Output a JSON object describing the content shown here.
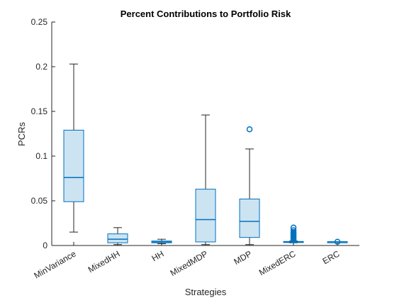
{
  "chart_data": {
    "type": "box",
    "title": "Percent Contributions to Portfolio Risk",
    "xlabel": "Strategies",
    "ylabel": "PCRs",
    "ylim": [
      0,
      0.25
    ],
    "yticks": [
      0,
      0.05,
      0.1,
      0.15,
      0.2,
      0.25
    ],
    "ytick_labels": [
      "0",
      "0.05",
      "0.1",
      "0.15",
      "0.2",
      "0.25"
    ],
    "categories": [
      "MinVariance",
      "MixedHH",
      "HH",
      "MixedMDP",
      "MDP",
      "MixedERC",
      "ERC"
    ],
    "boxes": [
      {
        "category": "MinVariance",
        "whisker_low": 0.015,
        "q1": 0.049,
        "median": 0.076,
        "q3": 0.129,
        "whisker_high": 0.203,
        "outliers": []
      },
      {
        "category": "MixedHH",
        "whisker_low": 0.001,
        "q1": 0.003,
        "median": 0.007,
        "q3": 0.013,
        "whisker_high": 0.02,
        "outliers": []
      },
      {
        "category": "HH",
        "whisker_low": 0.002,
        "q1": 0.003,
        "median": 0.004,
        "q3": 0.005,
        "whisker_high": 0.007,
        "outliers": []
      },
      {
        "category": "MixedMDP",
        "whisker_low": 0.001,
        "q1": 0.004,
        "median": 0.029,
        "q3": 0.063,
        "whisker_high": 0.146,
        "outliers": []
      },
      {
        "category": "MDP",
        "whisker_low": 0.001,
        "q1": 0.009,
        "median": 0.027,
        "q3": 0.052,
        "whisker_high": 0.108,
        "outliers": [
          0.13
        ]
      },
      {
        "category": "MixedERC",
        "whisker_low": 0.003,
        "q1": 0.0035,
        "median": 0.004,
        "q3": 0.0045,
        "whisker_high": 0.005,
        "outliers": [
          0.006,
          0.007,
          0.008,
          0.009,
          0.01,
          0.011,
          0.012,
          0.013,
          0.014,
          0.015,
          0.017,
          0.02
        ]
      },
      {
        "category": "ERC",
        "whisker_low": 0.0042,
        "q1": 0.0042,
        "median": 0.0042,
        "q3": 0.0042,
        "whisker_high": 0.0042,
        "outliers": [
          0.0042
        ]
      }
    ],
    "grid": false,
    "colors": {
      "box_edge": "#0072BD",
      "box_fill": "#CCE3F2",
      "whisker": "#262626",
      "outlier": "#0072BD",
      "axis": "#262626"
    }
  }
}
